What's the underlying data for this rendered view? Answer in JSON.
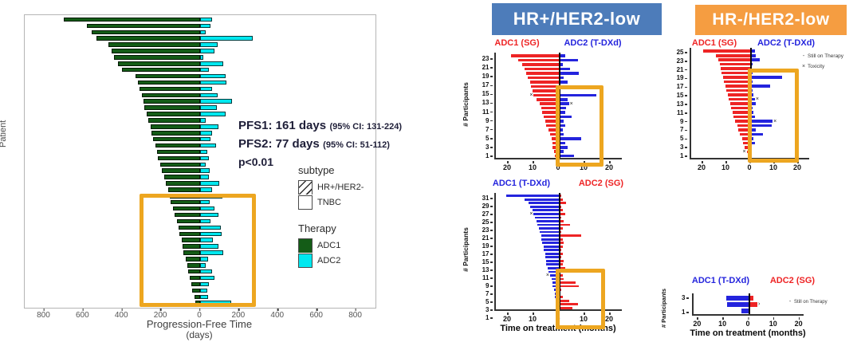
{
  "left_panel": {
    "ylabel": "Patient",
    "xlabel": "Progression-Free Time",
    "xlabel_units": "(days)",
    "annotation": {
      "pfs1_bold": "PFS1: 161 days",
      "pfs1_ci": "(95% CI: 131-224)",
      "pfs2_bold": "PFS2: 77 days",
      "pfs2_ci": "(95% CI: 51-112)",
      "pvalue": "p<0.01"
    },
    "subtype_legend": {
      "title": "subtype",
      "items": [
        {
          "label": "HR+/HER2-",
          "pattern": "hatched"
        },
        {
          "label": "TNBC",
          "pattern": "plain"
        }
      ]
    },
    "therapy_legend": {
      "title": "Therapy",
      "items": [
        {
          "label": "ADC1",
          "color": "#145c17"
        },
        {
          "label": "ADC2",
          "color": "#00e8ef"
        }
      ]
    }
  },
  "headers": {
    "hr_positive": {
      "label": "HR+/HER2-low",
      "bg": "#4d7cba",
      "fg": "#ffffff"
    },
    "hr_negative": {
      "label": "HR-/HER2-low",
      "bg": "#f59d41",
      "fg": "#ffffff"
    }
  },
  "mini_common": {
    "ylabel": "# Participants",
    "xlabel": "Time on treatment (months)"
  },
  "legends": {
    "still_marker": "-",
    "still_label": "Still on Therapy",
    "tox_marker": "×",
    "tox_label": "Toxicity"
  },
  "chart_data": {
    "main": {
      "type": "bar",
      "orientation": "butterfly-horizontal",
      "ylabel": "Patient",
      "xlabel": "Progression-Free Time (days)",
      "xticks": [
        -800,
        -600,
        -400,
        -200,
        0,
        200,
        400,
        600,
        800
      ],
      "axis_max_per_side": 900,
      "left_name": "ADC1 PFS1 (days)",
      "right_name": "ADC2 PFS2 (days)",
      "left_color": "#145c17",
      "right_color": "#00e8ef",
      "bar_border": true,
      "hatch_meaning": "HR+/HER2- subtype (hatched), TNBC (plain)",
      "stats": {
        "pfs1_median_days": 161,
        "pfs1_ci95": "131-224",
        "pfs2_median_days": 77,
        "pfs2_ci95": "51-112",
        "p_value": "p<0.01"
      },
      "rows": [
        [
          700,
          60
        ],
        [
          580,
          55
        ],
        [
          555,
          30
        ],
        [
          530,
          270
        ],
        [
          470,
          90
        ],
        [
          455,
          75
        ],
        [
          440,
          15
        ],
        [
          420,
          120
        ],
        [
          400,
          45
        ],
        [
          330,
          130
        ],
        [
          320,
          135
        ],
        [
          310,
          60
        ],
        [
          300,
          90
        ],
        [
          290,
          165
        ],
        [
          285,
          85
        ],
        [
          275,
          130
        ],
        [
          265,
          30
        ],
        [
          255,
          95
        ],
        [
          250,
          60
        ],
        [
          240,
          55
        ],
        [
          230,
          80
        ],
        [
          220,
          35
        ],
        [
          215,
          45
        ],
        [
          205,
          30
        ],
        [
          195,
          50
        ],
        [
          185,
          45
        ],
        [
          175,
          100
        ],
        [
          165,
          60
        ],
        [
          155,
          115
        ],
        [
          150,
          50
        ],
        [
          140,
          75
        ],
        [
          130,
          95
        ],
        [
          120,
          55
        ],
        [
          110,
          105
        ],
        [
          105,
          110
        ],
        [
          95,
          65
        ],
        [
          90,
          95
        ],
        [
          85,
          120
        ],
        [
          75,
          40
        ],
        [
          65,
          30
        ],
        [
          60,
          60
        ],
        [
          55,
          75
        ],
        [
          45,
          45
        ],
        [
          40,
          35
        ],
        [
          30,
          40
        ],
        [
          25,
          160
        ]
      ],
      "hatch": [
        true,
        true,
        false,
        false,
        false,
        true,
        true,
        false,
        true,
        false,
        false,
        true,
        false,
        true,
        true,
        false,
        true,
        true,
        false,
        true,
        true,
        true,
        false,
        true,
        false,
        true,
        false,
        true,
        false,
        false,
        true,
        false,
        true,
        false,
        true,
        false,
        true,
        false,
        true,
        false,
        true,
        false,
        true,
        false,
        true,
        true
      ]
    },
    "hr_pos_first_line": {
      "type": "bar",
      "orientation": "butterfly-horizontal",
      "group": "HR+/HER2-low",
      "left_label": "ADC1 (SG)",
      "right_label": "ADC2 (T-DXd)",
      "left_color": "#ee2425",
      "right_color": "#2424dd",
      "ylabel": "# Participants",
      "xticks": [
        -20,
        -10,
        0,
        10,
        20
      ],
      "axis_max_per_side": 25,
      "rows": [
        [
          19,
          2.5
        ],
        [
          16,
          7.5
        ],
        [
          14.5,
          1.5
        ],
        [
          13.5,
          4.5
        ],
        [
          13,
          8
        ],
        [
          12.5,
          2
        ],
        [
          11.5,
          3.5
        ],
        [
          11,
          2
        ],
        [
          10.5,
          0.5
        ],
        [
          10,
          15
        ],
        [
          9,
          3.5
        ],
        [
          7.5,
          4
        ],
        [
          7,
          3
        ],
        [
          6.5,
          2.5
        ],
        [
          6,
          5
        ],
        [
          5.5,
          2
        ],
        [
          5,
          2.5
        ],
        [
          4,
          1.5
        ],
        [
          3.5,
          2
        ],
        [
          3,
          9
        ],
        [
          2.5,
          2.5
        ],
        [
          2.5,
          3.5
        ],
        [
          2,
          2
        ],
        [
          1.5,
          6
        ]
      ],
      "markers": [
        {
          "row": 10,
          "side": "l",
          "glyph": "×"
        },
        {
          "row": 12,
          "side": "r",
          "glyph": "×"
        }
      ]
    },
    "hr_neg_first_line": {
      "type": "bar",
      "orientation": "butterfly-horizontal",
      "group": "HR-/HER2-low",
      "left_label": "ADC1 (SG)",
      "right_label": "ADC2 (T-DXd)",
      "left_color": "#ee2425",
      "right_color": "#2424dd",
      "ylabel": "# Participants",
      "xticks": [
        -20,
        -10,
        0,
        10,
        20
      ],
      "axis_max_per_side": 25,
      "rows": [
        [
          20,
          2
        ],
        [
          14.5,
          2.5
        ],
        [
          13.5,
          4
        ],
        [
          13,
          1
        ],
        [
          12.5,
          0.5
        ],
        [
          12,
          1
        ],
        [
          11.5,
          13.5
        ],
        [
          11,
          1
        ],
        [
          10.5,
          8.5
        ],
        [
          10,
          1
        ],
        [
          9.5,
          1.5
        ],
        [
          9,
          2
        ],
        [
          8.5,
          2.5
        ],
        [
          8,
          1
        ],
        [
          7.5,
          1.5
        ],
        [
          7,
          2
        ],
        [
          6.5,
          9.5
        ],
        [
          5.5,
          9
        ],
        [
          5,
          2.5
        ],
        [
          4.5,
          5.5
        ],
        [
          3.5,
          1.5
        ],
        [
          3,
          2
        ],
        [
          2.5,
          0.5
        ],
        [
          1.5,
          0.5
        ],
        [
          0.8,
          0.3
        ]
      ],
      "markers": [
        {
          "row": 12,
          "side": "r",
          "glyph": "×"
        },
        {
          "row": 17,
          "side": "r",
          "glyph": "×"
        },
        {
          "row": 24,
          "side": "l",
          "glyph": "×"
        }
      ]
    },
    "hr_pos_second_line": {
      "type": "bar",
      "orientation": "butterfly-horizontal",
      "group": "HR+/HER2-low",
      "left_label": "ADC1 (T-DXd)",
      "right_label": "ADC2 (SG)",
      "left_color": "#2424dd",
      "right_color": "#ee2425",
      "ylabel": "# Participants",
      "xlabel": "Time on treatment (months)",
      "xticks": [
        -20,
        -10,
        0,
        10,
        20
      ],
      "axis_max_per_side": 25,
      "rows": [
        [
          21,
          1
        ],
        [
          13.5,
          1.5
        ],
        [
          12,
          3
        ],
        [
          11.5,
          1
        ],
        [
          10.5,
          1.5
        ],
        [
          10,
          2.5
        ],
        [
          9.5,
          1
        ],
        [
          9,
          2
        ],
        [
          8.5,
          4.5
        ],
        [
          8,
          1.5
        ],
        [
          7.5,
          1
        ],
        [
          7,
          9
        ],
        [
          7,
          1.5
        ],
        [
          6.5,
          2
        ],
        [
          6,
          1.5
        ],
        [
          6,
          1
        ],
        [
          5.5,
          1.5
        ],
        [
          5.5,
          1
        ],
        [
          5,
          2
        ],
        [
          5,
          1.5
        ],
        [
          4.5,
          2.5
        ],
        [
          4,
          1
        ],
        [
          3.5,
          1.5
        ],
        [
          3,
          2
        ],
        [
          2.5,
          6.5
        ],
        [
          2.5,
          8
        ],
        [
          2,
          1
        ],
        [
          1.5,
          0.5
        ],
        [
          1.5,
          1.5
        ],
        [
          1,
          4
        ],
        [
          1,
          7.5
        ],
        [
          0.5,
          5.5
        ]
      ],
      "markers": [
        {
          "row": 6,
          "side": "l",
          "glyph": "×"
        },
        {
          "row": 23,
          "side": "l",
          "glyph": "×"
        }
      ]
    },
    "hr_neg_second_line": {
      "type": "bar",
      "orientation": "butterfly-horizontal",
      "group": "HR-/HER2-low",
      "left_label": "ADC1 (T-DXd)",
      "right_label": "ADC2 (SG)",
      "left_color": "#2424dd",
      "right_color": "#ee2425",
      "ylabel": "# Participants",
      "xlabel": "Time on treatment (months)",
      "xticks": [
        -20,
        -10,
        0,
        10,
        20
      ],
      "axis_max_per_side": 22,
      "rows": [
        [
          9,
          2
        ],
        [
          8.5,
          3.5
        ],
        [
          3,
          0.2
        ]
      ],
      "markers": [
        {
          "row": 2,
          "side": "r",
          "glyph": "›"
        }
      ]
    }
  }
}
